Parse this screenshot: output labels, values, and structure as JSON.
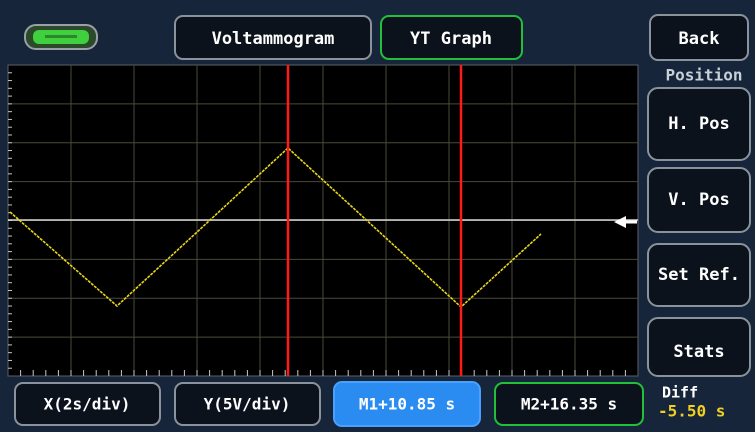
{
  "header": {
    "tabs": [
      "Voltammogram",
      "YT Graph"
    ],
    "back": "Back"
  },
  "side": {
    "section": "Position",
    "buttons": [
      "H. Pos",
      "V. Pos",
      "Set Ref.",
      "Stats"
    ]
  },
  "footer": {
    "buttons": [
      "X(2s/div)",
      "Y(5V/div)",
      "M1+10.85 s",
      "M2+16.35 s"
    ],
    "diff_label": "Diff",
    "diff_value": "-5.50 s"
  }
}
